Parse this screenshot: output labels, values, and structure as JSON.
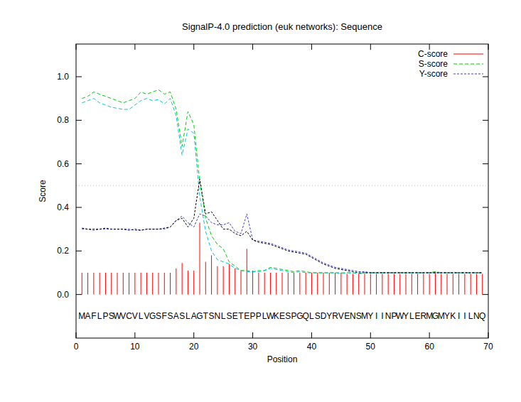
{
  "chart_data": {
    "type": "line",
    "title": "SignalP-4.0 prediction (euk networks): Sequence",
    "x_label": "Position",
    "y_label": "Score",
    "xlim": [
      0,
      70
    ],
    "xticks": [
      0,
      10,
      20,
      30,
      40,
      50,
      60,
      70
    ],
    "ylim": [
      -0.2,
      1.15
    ],
    "yticks": [
      {
        "value": 0,
        "label": "0.0"
      },
      {
        "value": 0.2,
        "label": "0.2"
      },
      {
        "value": 0.4,
        "label": "0.4"
      },
      {
        "value": 0.6,
        "label": "0.6"
      },
      {
        "value": 0.8,
        "label": "0.8"
      },
      {
        "value": 1.0,
        "label": "1.0"
      }
    ],
    "cutoff": 0.5,
    "legend": "top-right",
    "sequence": [
      "M",
      "A",
      "F",
      "L",
      "P",
      "S",
      "W",
      "V",
      "C",
      "V",
      "L",
      "V",
      "G",
      "S",
      "F",
      "S",
      "A",
      "S",
      "L",
      "A",
      "G",
      "T",
      "S",
      "N",
      "L",
      "S",
      "E",
      "T",
      "E",
      "P",
      "P",
      "L",
      "W",
      "K",
      "E",
      "S",
      "P",
      "G",
      "Q",
      "L",
      "S",
      "D",
      "Y",
      "R",
      "V",
      "E",
      "N",
      "S",
      "M",
      "Y",
      "I",
      "I",
      "N",
      "P",
      "W",
      "Y",
      "L",
      "E",
      "R",
      "M",
      "G",
      "M",
      "Y",
      "K",
      "I",
      "I",
      "L",
      "N",
      "Q"
    ],
    "x": [
      1,
      2,
      3,
      4,
      5,
      6,
      7,
      8,
      9,
      10,
      11,
      12,
      13,
      14,
      15,
      16,
      17,
      18,
      19,
      20,
      21,
      22,
      23,
      24,
      25,
      26,
      27,
      28,
      29,
      30,
      31,
      32,
      33,
      34,
      35,
      36,
      37,
      38,
      39,
      40,
      41,
      42,
      43,
      44,
      45,
      46,
      47,
      48,
      49,
      50,
      51,
      52,
      53,
      54,
      55,
      56,
      57,
      58,
      59,
      60,
      61,
      62,
      63,
      64,
      65,
      66,
      67,
      68,
      69
    ],
    "series": [
      {
        "name": "C-score",
        "type": "impulse",
        "color": "#ff0000",
        "line_style": "solid",
        "values": [
          0.1,
          0.1,
          0.1,
          0.1,
          0.1,
          0.1,
          0.1,
          0.1,
          0.1,
          0.1,
          0.1,
          0.1,
          0.1,
          0.1,
          0.1,
          0.1,
          0.12,
          0.145,
          0.11,
          0.11,
          0.33,
          0.15,
          0.18,
          0.13,
          0.13,
          0.14,
          0.12,
          0.11,
          0.21,
          0.11,
          0.1,
          0.1,
          0.1,
          0.1,
          0.1,
          0.1,
          0.1,
          0.1,
          0.1,
          0.1,
          0.1,
          0.1,
          0.1,
          0.1,
          0.1,
          0.095,
          0.095,
          0.095,
          0.095,
          0.095,
          0.095,
          0.095,
          0.095,
          0.095,
          0.095,
          0.095,
          0.095,
          0.095,
          0.095,
          0.095,
          0.105,
          0.095,
          0.095,
          0.095,
          0.095,
          0.095,
          0.095,
          0.095,
          0.095
        ]
      },
      {
        "name": "S-score",
        "type": "line",
        "color": "#00d000",
        "line_style": "dashed",
        "values": [
          0.9,
          0.91,
          0.93,
          0.92,
          0.91,
          0.9,
          0.89,
          0.88,
          0.89,
          0.9,
          0.93,
          0.92,
          0.93,
          0.94,
          0.92,
          0.93,
          0.85,
          0.68,
          0.84,
          0.78,
          0.52,
          0.35,
          0.27,
          0.23,
          0.21,
          0.15,
          0.13,
          0.11,
          0.11,
          0.105,
          0.11,
          0.11,
          0.125,
          0.12,
          0.115,
          0.11,
          0.105,
          0.11,
          0.105,
          0.1,
          0.1,
          0.1,
          0.1,
          0.1,
          0.1,
          0.1,
          0.1,
          0.095,
          0.1,
          0.1,
          0.1,
          0.1,
          0.1,
          0.1,
          0.1,
          0.1,
          0.1,
          0.1,
          0.1,
          0.1,
          0.105,
          0.1,
          0.1,
          0.1,
          0.1,
          0.1,
          0.1,
          0.1,
          0.1
        ]
      },
      {
        "type": "line",
        "color": "#00c8e0",
        "line_style": "dashed",
        "values": [
          0.88,
          0.89,
          0.9,
          0.88,
          0.87,
          0.86,
          0.855,
          0.85,
          0.85,
          0.87,
          0.89,
          0.9,
          0.89,
          0.895,
          0.875,
          0.9,
          0.82,
          0.64,
          0.76,
          0.74,
          0.45,
          0.29,
          0.2,
          0.16,
          0.15,
          0.14,
          0.12,
          0.11,
          0.105,
          0.105,
          0.105,
          0.11,
          0.12,
          0.115,
          0.11,
          0.105,
          0.1,
          0.105,
          0.1,
          0.1,
          0.1,
          0.1,
          0.1,
          0.1,
          0.095,
          0.1,
          0.1,
          0.095,
          0.1,
          0.1,
          0.1,
          0.1,
          0.1,
          0.1,
          0.1,
          0.1,
          0.1,
          0.1,
          0.1,
          0.1,
          0.1,
          0.1,
          0.1,
          0.1,
          0.1,
          0.1,
          0.1,
          0.1,
          0.1
        ]
      },
      {
        "name": "Y-score",
        "type": "line",
        "color": "#4040d0",
        "line_style": "dotted",
        "values": [
          0.3,
          0.3,
          0.295,
          0.3,
          0.3,
          0.3,
          0.3,
          0.3,
          0.3,
          0.295,
          0.295,
          0.3,
          0.3,
          0.3,
          0.3,
          0.31,
          0.34,
          0.36,
          0.33,
          0.31,
          0.37,
          0.36,
          0.33,
          0.32,
          0.32,
          0.33,
          0.29,
          0.28,
          0.37,
          0.25,
          0.245,
          0.24,
          0.235,
          0.225,
          0.215,
          0.205,
          0.2,
          0.195,
          0.19,
          0.175,
          0.16,
          0.145,
          0.135,
          0.125,
          0.12,
          0.115,
          0.11,
          0.105,
          0.105,
          0.1,
          0.1,
          0.1,
          0.1,
          0.1,
          0.1,
          0.1,
          0.1,
          0.1,
          0.1,
          0.1,
          0.1,
          0.1,
          0.1,
          0.1,
          0.1,
          0.1,
          0.1,
          0.1,
          0.1
        ]
      },
      {
        "type": "line",
        "color": "#000000",
        "line_style": "dotted",
        "values": [
          0.305,
          0.3,
          0.3,
          0.3,
          0.305,
          0.3,
          0.3,
          0.3,
          0.295,
          0.3,
          0.295,
          0.3,
          0.3,
          0.3,
          0.305,
          0.31,
          0.34,
          0.35,
          0.31,
          0.35,
          0.53,
          0.37,
          0.38,
          0.34,
          0.3,
          0.3,
          0.28,
          0.27,
          0.29,
          0.25,
          0.24,
          0.235,
          0.23,
          0.22,
          0.21,
          0.2,
          0.195,
          0.19,
          0.185,
          0.17,
          0.155,
          0.14,
          0.13,
          0.12,
          0.115,
          0.11,
          0.105,
          0.1,
          0.1,
          0.1,
          0.1,
          0.1,
          0.1,
          0.1,
          0.1,
          0.1,
          0.1,
          0.1,
          0.1,
          0.1,
          0.1,
          0.1,
          0.1,
          0.1,
          0.1,
          0.1,
          0.1,
          0.1,
          0.1
        ]
      }
    ]
  }
}
